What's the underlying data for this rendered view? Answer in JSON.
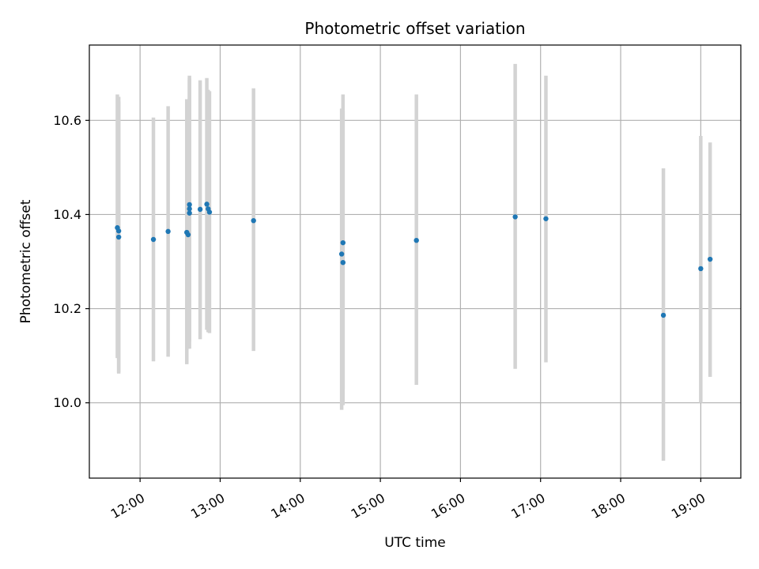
{
  "chart_data": {
    "type": "scatter",
    "title": "Photometric offset variation",
    "xlabel": "UTC time",
    "ylabel": "Photometric offset",
    "x_axis_type": "time",
    "xlim": [
      "11:22",
      "19:30"
    ],
    "ylim": [
      9.84,
      10.76
    ],
    "grid": true,
    "x_ticks": [
      "12:00",
      "13:00",
      "14:00",
      "15:00",
      "16:00",
      "17:00",
      "18:00",
      "19:00"
    ],
    "y_ticks": [
      "10.0",
      "10.2",
      "10.4",
      "10.6"
    ],
    "point_color": "#1f77b4",
    "errorbar_color": "#d3d3d3",
    "points": [
      {
        "time": "11:43",
        "y": 10.372,
        "err_low": 10.095,
        "err_high": 10.655
      },
      {
        "time": "11:44",
        "y": 10.365,
        "err_low": 10.065,
        "err_high": 10.65
      },
      {
        "time": "11:44",
        "y": 10.352,
        "err_low": 10.062,
        "err_high": 10.64
      },
      {
        "time": "12:10",
        "y": 10.347,
        "err_low": 10.088,
        "err_high": 10.606
      },
      {
        "time": "12:21",
        "y": 10.364,
        "err_low": 10.098,
        "err_high": 10.63
      },
      {
        "time": "12:35",
        "y": 10.362,
        "err_low": 10.082,
        "err_high": 10.645
      },
      {
        "time": "12:36",
        "y": 10.357,
        "err_low": 10.115,
        "err_high": 10.64
      },
      {
        "time": "12:37",
        "y": 10.421,
        "err_low": 10.14,
        "err_high": 10.695
      },
      {
        "time": "12:37",
        "y": 10.403,
        "err_low": 10.115,
        "err_high": 10.69
      },
      {
        "time": "12:37",
        "y": 10.412,
        "err_low": 10.13,
        "err_high": 10.685
      },
      {
        "time": "12:45",
        "y": 10.411,
        "err_low": 10.135,
        "err_high": 10.685
      },
      {
        "time": "12:50",
        "y": 10.422,
        "err_low": 10.155,
        "err_high": 10.69
      },
      {
        "time": "12:51",
        "y": 10.412,
        "err_low": 10.15,
        "err_high": 10.665
      },
      {
        "time": "12:52",
        "y": 10.405,
        "err_low": 10.148,
        "err_high": 10.662
      },
      {
        "time": "13:25",
        "y": 10.387,
        "err_low": 10.11,
        "err_high": 10.668
      },
      {
        "time": "14:31",
        "y": 10.316,
        "err_low": 9.985,
        "err_high": 10.625
      },
      {
        "time": "14:32",
        "y": 10.298,
        "err_low": 9.995,
        "err_high": 10.62
      },
      {
        "time": "14:32",
        "y": 10.34,
        "err_low": 10.03,
        "err_high": 10.655
      },
      {
        "time": "15:27",
        "y": 10.345,
        "err_low": 10.038,
        "err_high": 10.655
      },
      {
        "time": "16:41",
        "y": 10.395,
        "err_low": 10.072,
        "err_high": 10.72
      },
      {
        "time": "17:04",
        "y": 10.391,
        "err_low": 10.086,
        "err_high": 10.695
      },
      {
        "time": "18:32",
        "y": 10.186,
        "err_low": 9.877,
        "err_high": 10.498
      },
      {
        "time": "19:00",
        "y": 10.285,
        "err_low": 10.0,
        "err_high": 10.567
      },
      {
        "time": "19:07",
        "y": 10.305,
        "err_low": 10.055,
        "err_high": 10.553
      }
    ]
  }
}
